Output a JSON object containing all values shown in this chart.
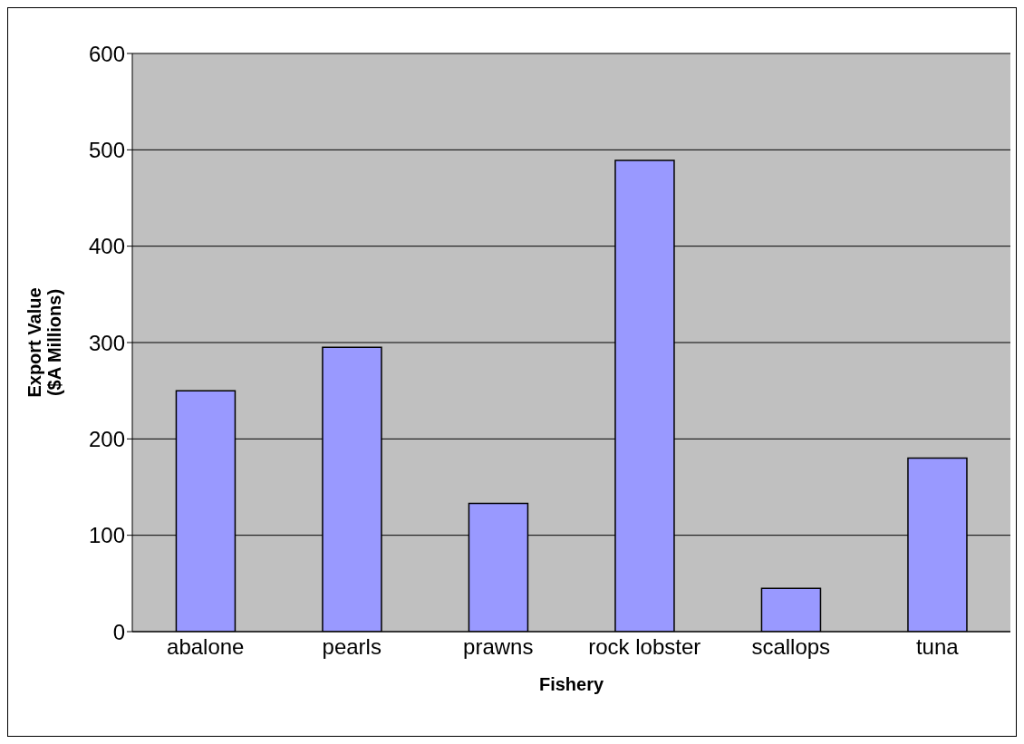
{
  "chart_data": {
    "type": "bar",
    "xlabel": "Fishery",
    "ylabel": "Export Value\n($A Millions)",
    "categories": [
      "abalone",
      "pearls",
      "prawns",
      "rock lobster",
      "scallops",
      "tuna"
    ],
    "values": [
      250,
      295,
      133,
      489,
      45,
      180
    ],
    "color": "#9999ff",
    "ylim": [
      0,
      600
    ],
    "yticks": [
      0,
      100,
      200,
      300,
      400,
      500,
      600
    ],
    "grid": "y"
  }
}
